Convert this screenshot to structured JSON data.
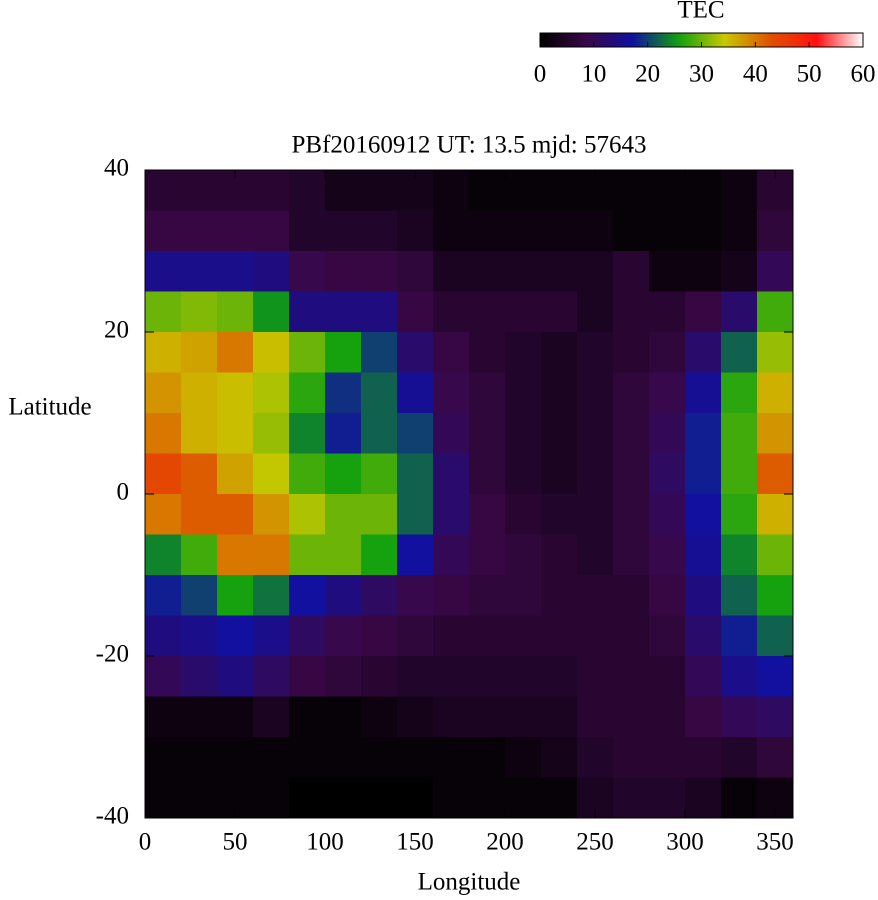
{
  "chart_data": {
    "type": "heatmap",
    "title": "PBf20160912  UT: 13.5  mjd: 57643",
    "x_label": "Longitude",
    "y_label": "Latitude",
    "x": [
      10,
      30,
      50,
      70,
      90,
      110,
      130,
      150,
      170,
      190,
      210,
      230,
      250,
      270,
      290,
      310,
      330,
      350
    ],
    "y": [
      37.5,
      32.5,
      27.5,
      22.5,
      17.5,
      12.5,
      7.5,
      2.5,
      -2.5,
      -7.5,
      -12.5,
      -17.5,
      -22.5,
      -27.5,
      -32.5,
      -37.5
    ],
    "values": [
      [
        6,
        6,
        6,
        6,
        5,
        3,
        3,
        3,
        2,
        1,
        1,
        1,
        1,
        1,
        1,
        1,
        2,
        6
      ],
      [
        8,
        8,
        8,
        8,
        5,
        5,
        5,
        4,
        2,
        2,
        2,
        2,
        2,
        1,
        1,
        1,
        2,
        7
      ],
      [
        15,
        15,
        15,
        14,
        9,
        8,
        8,
        7,
        4,
        4,
        4,
        4,
        4,
        6,
        2,
        2,
        3,
        10
      ],
      [
        30,
        31,
        30,
        25,
        14,
        14,
        14,
        8,
        6,
        6,
        6,
        6,
        4,
        6,
        6,
        8,
        12,
        28
      ],
      [
        36,
        37,
        40,
        35,
        30,
        26,
        20,
        12,
        8,
        6,
        5,
        4,
        5,
        6,
        7,
        12,
        22,
        32
      ],
      [
        38,
        36,
        35,
        33,
        27,
        19,
        22,
        16,
        9,
        7,
        5,
        4,
        5,
        7,
        9,
        16,
        27,
        36
      ],
      [
        40,
        36,
        35,
        32,
        24,
        18,
        22,
        20,
        10,
        7,
        5,
        4,
        5,
        7,
        10,
        18,
        28,
        38
      ],
      [
        44,
        42,
        37,
        34,
        28,
        26,
        28,
        22,
        12,
        7,
        5,
        4,
        5,
        7,
        11,
        18,
        28,
        42
      ],
      [
        40,
        42,
        42,
        38,
        33,
        30,
        30,
        22,
        12,
        8,
        6,
        5,
        5,
        7,
        10,
        17,
        27,
        36
      ],
      [
        24,
        28,
        40,
        40,
        30,
        30,
        26,
        17,
        10,
        8,
        7,
        6,
        5,
        7,
        9,
        16,
        24,
        30
      ],
      [
        18,
        20,
        26,
        23,
        17,
        14,
        11,
        9,
        8,
        7,
        7,
        6,
        6,
        6,
        8,
        14,
        22,
        26
      ],
      [
        14,
        15,
        17,
        15,
        11,
        9,
        8,
        7,
        6,
        6,
        6,
        6,
        6,
        6,
        7,
        12,
        18,
        22
      ],
      [
        10,
        12,
        14,
        11,
        8,
        7,
        6,
        5,
        5,
        5,
        5,
        5,
        6,
        6,
        6,
        10,
        15,
        17
      ],
      [
        2,
        2,
        2,
        4,
        1,
        1,
        2,
        3,
        4,
        4,
        4,
        4,
        6,
        6,
        6,
        8,
        10,
        11
      ],
      [
        1,
        1,
        1,
        1,
        1,
        1,
        1,
        1,
        1,
        1,
        2,
        3,
        5,
        6,
        6,
        6,
        5,
        7
      ],
      [
        1,
        1,
        1,
        1,
        0,
        0,
        0,
        0,
        1,
        1,
        1,
        1,
        4,
        5,
        5,
        4,
        1,
        2
      ]
    ],
    "xlim": [
      0,
      360
    ],
    "ylim": [
      -40,
      40
    ],
    "xticks": [
      0,
      50,
      100,
      150,
      200,
      250,
      300,
      350
    ],
    "yticks": [
      -40,
      -20,
      0,
      20,
      40
    ],
    "colorbar": {
      "label": "TEC",
      "lim": [
        0,
        60
      ],
      "ticks": [
        0,
        10,
        20,
        30,
        40,
        50,
        60
      ],
      "colors": [
        "#000000",
        "#3a0848",
        "#1010a0",
        "#10a010",
        "#c8c800",
        "#e05000",
        "#ff1010",
        "#ffffff"
      ]
    }
  }
}
